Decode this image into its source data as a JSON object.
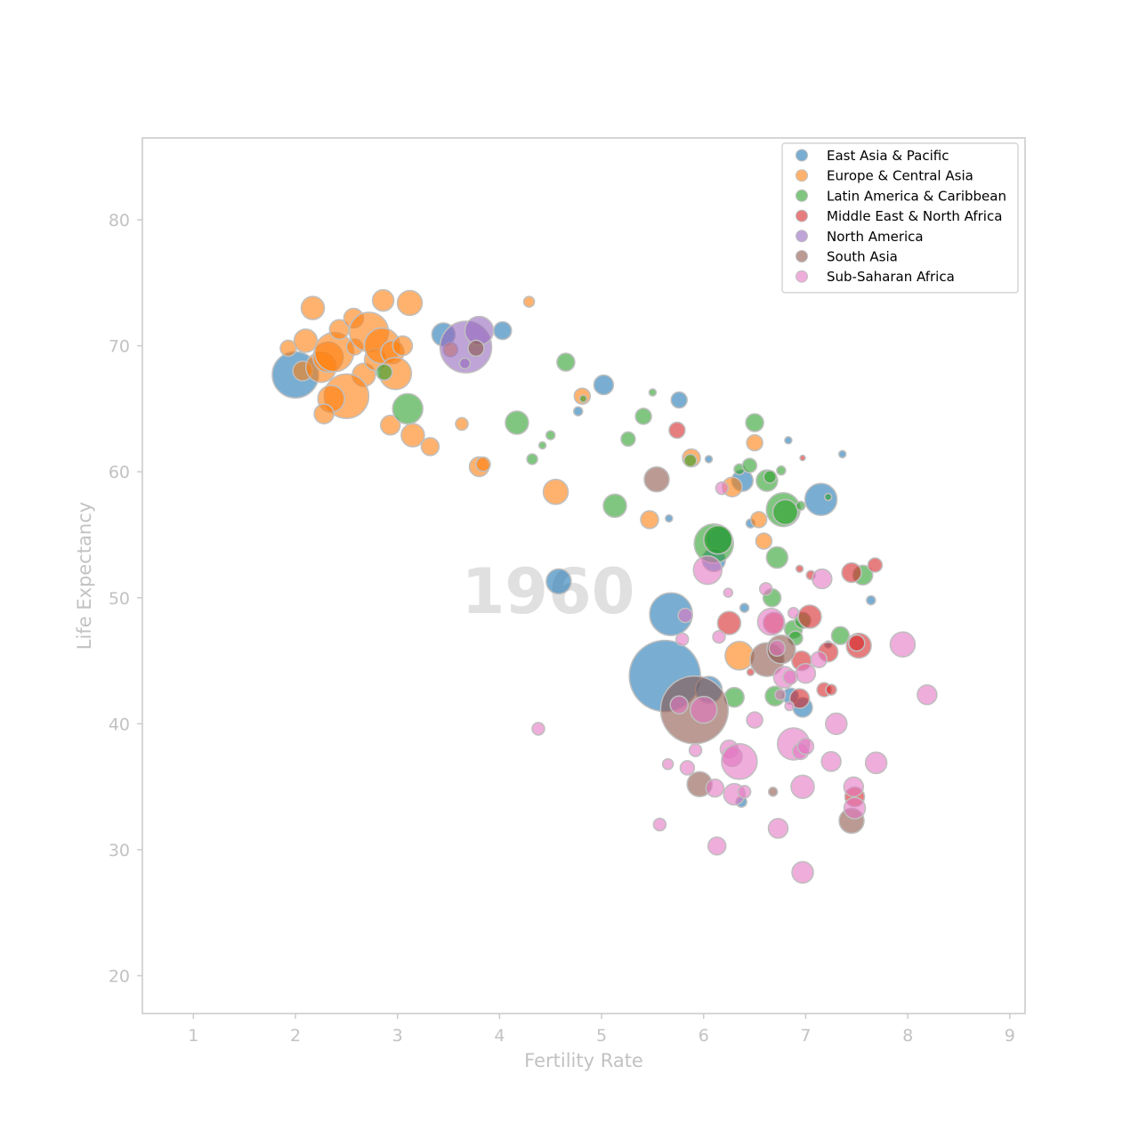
{
  "chart_data": {
    "type": "scatter",
    "title": "",
    "xlabel": "Fertility Rate",
    "ylabel": "Life Expectancy",
    "annotation": "1960",
    "xlim": [
      0.5,
      9.15
    ],
    "ylim": [
      17,
      86.5
    ],
    "xticks": [
      "1",
      "2",
      "3",
      "4",
      "5",
      "6",
      "7",
      "8",
      "9"
    ],
    "yticks": [
      "20",
      "30",
      "40",
      "50",
      "60",
      "70",
      "80"
    ],
    "grid": false,
    "legend_position": "top-right",
    "series": [
      {
        "name": "East Asia & Pacific",
        "color": "#1f77b4",
        "points": [
          [
            2.0,
            67.7,
            26
          ],
          [
            3.45,
            70.9,
            13
          ],
          [
            4.03,
            71.2,
            10
          ],
          [
            5.02,
            66.9,
            11
          ],
          [
            5.76,
            65.7,
            9
          ],
          [
            4.77,
            64.8,
            5
          ],
          [
            6.05,
            61.0,
            4
          ],
          [
            6.83,
            62.5,
            4
          ],
          [
            7.36,
            61.4,
            4
          ],
          [
            6.38,
            59.3,
            12
          ],
          [
            7.15,
            57.8,
            18
          ],
          [
            5.66,
            56.3,
            4
          ],
          [
            6.46,
            55.9,
            5
          ],
          [
            6.15,
            54.6,
            14
          ],
          [
            6.1,
            53.0,
            13
          ],
          [
            4.58,
            51.3,
            14
          ],
          [
            5.68,
            48.7,
            24
          ],
          [
            5.62,
            43.8,
            40
          ],
          [
            6.05,
            42.7,
            15
          ],
          [
            6.4,
            49.2,
            5
          ],
          [
            7.22,
            46.3,
            4
          ],
          [
            7.64,
            49.8,
            5
          ],
          [
            6.97,
            41.3,
            11
          ],
          [
            6.37,
            33.8,
            6
          ],
          [
            6.85,
            42.2,
            9
          ]
        ]
      },
      {
        "name": "Europe & Central Asia",
        "color": "#ff7f0e",
        "points": [
          [
            1.93,
            69.8,
            9
          ],
          [
            2.1,
            70.4,
            13
          ],
          [
            2.17,
            73.0,
            13
          ],
          [
            2.07,
            68.0,
            11
          ],
          [
            2.25,
            68.3,
            17
          ],
          [
            2.32,
            69.1,
            17
          ],
          [
            2.38,
            69.5,
            22
          ],
          [
            2.43,
            71.3,
            11
          ],
          [
            2.57,
            72.2,
            11
          ],
          [
            2.58,
            69.9,
            9
          ],
          [
            2.67,
            67.7,
            13
          ],
          [
            2.72,
            71.1,
            22
          ],
          [
            2.78,
            68.9,
            12
          ],
          [
            2.85,
            70.0,
            20
          ],
          [
            2.86,
            73.6,
            12
          ],
          [
            2.95,
            69.5,
            13
          ],
          [
            3.05,
            70.0,
            11
          ],
          [
            3.12,
            73.4,
            14
          ],
          [
            2.98,
            67.8,
            18
          ],
          [
            2.5,
            66.0,
            25
          ],
          [
            2.35,
            65.8,
            15
          ],
          [
            2.28,
            64.6,
            11
          ],
          [
            2.93,
            63.7,
            11
          ],
          [
            3.15,
            62.9,
            13
          ],
          [
            3.32,
            62.0,
            10
          ],
          [
            3.63,
            63.8,
            7
          ],
          [
            3.8,
            60.4,
            11
          ],
          [
            3.84,
            60.6,
            8
          ],
          [
            4.29,
            73.5,
            6
          ],
          [
            4.81,
            66.0,
            9
          ],
          [
            4.55,
            58.4,
            14
          ],
          [
            5.47,
            56.2,
            10
          ],
          [
            5.88,
            61.1,
            10
          ],
          [
            6.28,
            58.8,
            11
          ],
          [
            6.5,
            62.3,
            9
          ],
          [
            6.54,
            56.2,
            9
          ],
          [
            6.59,
            54.5,
            9
          ],
          [
            6.35,
            45.4,
            16
          ],
          [
            3.52,
            69.7,
            8
          ]
        ]
      },
      {
        "name": "Latin America & Caribbean",
        "color": "#2ca02c",
        "points": [
          [
            2.87,
            67.9,
            9
          ],
          [
            3.1,
            65.0,
            17
          ],
          [
            4.17,
            63.9,
            13
          ],
          [
            4.65,
            68.7,
            10
          ],
          [
            4.5,
            62.9,
            5
          ],
          [
            4.42,
            62.1,
            4
          ],
          [
            4.32,
            61.0,
            6
          ],
          [
            4.82,
            65.8,
            4
          ],
          [
            5.26,
            62.6,
            8
          ],
          [
            5.41,
            64.4,
            9
          ],
          [
            5.5,
            66.3,
            4
          ],
          [
            5.13,
            57.3,
            13
          ],
          [
            6.1,
            54.3,
            22
          ],
          [
            6.14,
            54.6,
            16
          ],
          [
            6.35,
            60.2,
            6
          ],
          [
            6.45,
            60.5,
            8
          ],
          [
            6.5,
            63.9,
            10
          ],
          [
            6.62,
            59.3,
            12
          ],
          [
            6.65,
            59.6,
            7
          ],
          [
            6.76,
            60.1,
            5
          ],
          [
            6.78,
            57.0,
            19
          ],
          [
            6.8,
            56.8,
            14
          ],
          [
            6.95,
            57.3,
            5
          ],
          [
            7.22,
            58.0,
            4
          ],
          [
            6.72,
            53.2,
            12
          ],
          [
            6.67,
            50.0,
            10
          ],
          [
            6.88,
            47.5,
            10
          ],
          [
            6.9,
            46.8,
            8
          ],
          [
            6.97,
            48.2,
            9
          ],
          [
            7.34,
            47.0,
            10
          ],
          [
            7.56,
            51.8,
            11
          ],
          [
            6.3,
            42.1,
            11
          ],
          [
            6.7,
            42.2,
            11
          ],
          [
            5.87,
            60.9,
            7
          ]
        ]
      },
      {
        "name": "Middle East & North Africa",
        "color": "#d62728",
        "points": [
          [
            5.74,
            63.3,
            9
          ],
          [
            6.25,
            48.0,
            13
          ],
          [
            6.46,
            44.1,
            4
          ],
          [
            6.69,
            48.0,
            12
          ],
          [
            6.94,
            52.3,
            4
          ],
          [
            6.97,
            61.1,
            3
          ],
          [
            7.04,
            48.5,
            13
          ],
          [
            6.96,
            45.0,
            11
          ],
          [
            7.22,
            45.7,
            11
          ],
          [
            7.45,
            52.0,
            11
          ],
          [
            7.68,
            52.6,
            8
          ],
          [
            7.52,
            46.2,
            14
          ],
          [
            6.94,
            42.0,
            11
          ],
          [
            7.18,
            42.7,
            8
          ],
          [
            7.25,
            42.7,
            6
          ],
          [
            7.48,
            34.2,
            11
          ],
          [
            7.05,
            51.8,
            5
          ],
          [
            7.5,
            46.4,
            9
          ]
        ]
      },
      {
        "name": "North America",
        "color": "#9467bd",
        "points": [
          [
            3.67,
            69.9,
            29
          ],
          [
            3.8,
            71.2,
            16
          ],
          [
            3.66,
            68.6,
            6
          ]
        ]
      },
      {
        "name": "South Asia",
        "color": "#8c564b",
        "points": [
          [
            5.54,
            59.4,
            14
          ],
          [
            5.91,
            41.1,
            38
          ],
          [
            6.62,
            45.1,
            19
          ],
          [
            6.76,
            45.9,
            16
          ],
          [
            5.96,
            35.2,
            14
          ],
          [
            6.68,
            34.6,
            5
          ],
          [
            7.45,
            32.3,
            14
          ],
          [
            3.77,
            69.8,
            9
          ]
        ]
      },
      {
        "name": "Sub-Saharan Africa",
        "color": "#e377c2",
        "points": [
          [
            4.38,
            39.6,
            7
          ],
          [
            5.57,
            32.0,
            7
          ],
          [
            5.65,
            36.8,
            6
          ],
          [
            5.79,
            46.7,
            7
          ],
          [
            5.82,
            48.6,
            8
          ],
          [
            5.76,
            41.5,
            10
          ],
          [
            5.84,
            36.5,
            8
          ],
          [
            5.92,
            37.9,
            7
          ],
          [
            6.0,
            41.1,
            15
          ],
          [
            6.04,
            52.2,
            16
          ],
          [
            6.11,
            34.9,
            10
          ],
          [
            6.13,
            30.3,
            10
          ],
          [
            6.15,
            46.9,
            7
          ],
          [
            6.18,
            58.7,
            7
          ],
          [
            6.24,
            50.4,
            5
          ],
          [
            6.25,
            38.0,
            10
          ],
          [
            6.28,
            37.4,
            11
          ],
          [
            6.3,
            34.4,
            12
          ],
          [
            6.35,
            37.0,
            20
          ],
          [
            6.4,
            34.6,
            7
          ],
          [
            6.5,
            40.3,
            9
          ],
          [
            6.61,
            50.7,
            7
          ],
          [
            6.66,
            48.1,
            15
          ],
          [
            6.73,
            31.7,
            11
          ],
          [
            6.75,
            42.3,
            6
          ],
          [
            6.79,
            43.7,
            12
          ],
          [
            6.85,
            43.7,
            8
          ],
          [
            6.88,
            48.8,
            6
          ],
          [
            6.88,
            38.4,
            18
          ],
          [
            6.95,
            37.8,
            9
          ],
          [
            6.97,
            35.0,
            13
          ],
          [
            6.97,
            28.2,
            12
          ],
          [
            7.0,
            44.0,
            11
          ],
          [
            7.0,
            38.2,
            9
          ],
          [
            7.13,
            45.1,
            9
          ],
          [
            7.16,
            51.5,
            11
          ],
          [
            7.25,
            37.0,
            11
          ],
          [
            7.3,
            40.0,
            12
          ],
          [
            7.47,
            35.0,
            11
          ],
          [
            7.48,
            33.3,
            12
          ],
          [
            7.69,
            36.9,
            12
          ],
          [
            7.95,
            46.3,
            14
          ],
          [
            8.19,
            42.3,
            11
          ],
          [
            6.84,
            41.4,
            5
          ],
          [
            6.72,
            46.0,
            9
          ]
        ]
      }
    ]
  }
}
